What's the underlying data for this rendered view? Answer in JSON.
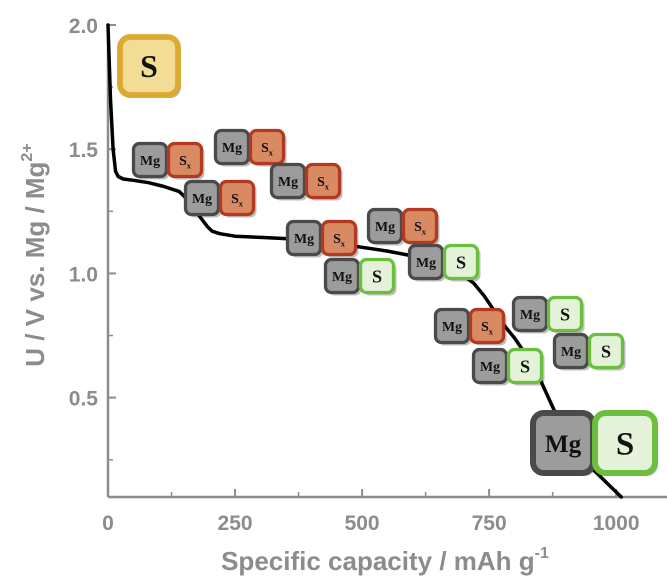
{
  "chart_data": {
    "type": "line",
    "xlabel": "Specific capacity / mAh g",
    "xlabel_sup": "-1",
    "ylabel": "U / V vs. Mg / Mg",
    "ylabel_sup": "2+",
    "xlim": [
      0,
      1100
    ],
    "ylim": [
      0.1,
      2.0
    ],
    "x_ticks": [
      0,
      250,
      500,
      750,
      1000
    ],
    "x_tick_labels": [
      "0",
      "250",
      "500",
      "750",
      "1000"
    ],
    "y_ticks": [
      0.5,
      1.0,
      1.5,
      2.0
    ],
    "y_tick_labels": [
      "0.5",
      "1.0",
      "1.5",
      "2.0"
    ],
    "grid": false,
    "series": [
      {
        "color": "#000000",
        "x": [
          0,
          5,
          10,
          15,
          20,
          30,
          50,
          80,
          110,
          140,
          160,
          180,
          195,
          205,
          220,
          250,
          300,
          350,
          400,
          450,
          500,
          550,
          600,
          650,
          700,
          720,
          740,
          760,
          780,
          800,
          820,
          840,
          860,
          880,
          900,
          930,
          960,
          990,
          1010
        ],
        "y": [
          2.0,
          1.7,
          1.5,
          1.41,
          1.39,
          1.38,
          1.375,
          1.365,
          1.35,
          1.33,
          1.29,
          1.23,
          1.19,
          1.17,
          1.16,
          1.15,
          1.145,
          1.14,
          1.13,
          1.12,
          1.105,
          1.09,
          1.07,
          1.04,
          0.99,
          0.96,
          0.91,
          0.85,
          0.79,
          0.74,
          0.68,
          0.62,
          0.53,
          0.44,
          0.34,
          0.26,
          0.2,
          0.14,
          0.1
        ]
      }
    ],
    "annotations": [
      {
        "items": [
          {
            "text": "S",
            "color": "yellow"
          }
        ],
        "position": "top-left"
      },
      {
        "items": [
          {
            "text": "Mg",
            "color": "gray"
          },
          {
            "text": "Sx",
            "color": "orange"
          }
        ],
        "count": 8
      },
      {
        "items": [
          {
            "text": "Mg",
            "color": "gray"
          },
          {
            "text": "S",
            "color": "green"
          }
        ],
        "count": 6
      },
      {
        "items": [
          {
            "text": "Mg",
            "color": "gray"
          },
          {
            "text": "S",
            "color": "green"
          }
        ],
        "position": "bottom-right",
        "size": "large"
      }
    ],
    "colors": {
      "axis": "#8c8c8c",
      "curve": "#000000",
      "mg_fill": "#9c9c9c",
      "mg_border": "#4a4a4a",
      "sx_fill": "#d98a63",
      "sx_border": "#b33a22",
      "s_green_fill": "#e4f2da",
      "s_green_border": "#6cbf3e",
      "s_yellow_fill": "#f3dd95",
      "s_yellow_border": "#dcaa30"
    }
  }
}
